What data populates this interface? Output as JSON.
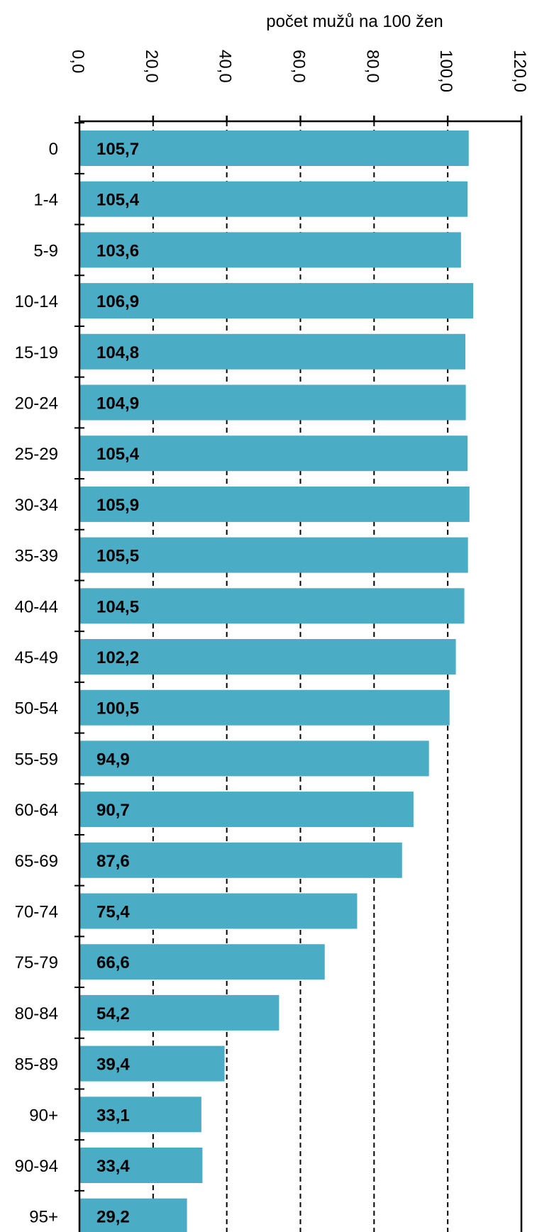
{
  "chart_data": {
    "type": "bar",
    "orientation": "horizontal",
    "title": "počet mužů na 100 žen",
    "xlabel": "",
    "ylabel": "",
    "xlim": [
      0,
      120
    ],
    "x_ticks": [
      0,
      20,
      40,
      60,
      80,
      100,
      120
    ],
    "x_tick_labels": [
      "0,0",
      "20,0",
      "40,0",
      "60,0",
      "80,0",
      "100,0",
      "120,0"
    ],
    "grid": "vertical dashed",
    "legend": "none",
    "bar_color": "#4bacc6",
    "categories": [
      "0",
      "1-4",
      "5-9",
      "10-14",
      "15-19",
      "20-24",
      "25-29",
      "30-34",
      "35-39",
      "40-44",
      "45-49",
      "50-54",
      "55-59",
      "60-64",
      "65-69",
      "70-74",
      "75-79",
      "80-84",
      "85-89",
      "90+",
      "90-94",
      "95+"
    ],
    "values": [
      105.7,
      105.4,
      103.6,
      106.9,
      104.8,
      104.9,
      105.4,
      105.9,
      105.5,
      104.5,
      102.2,
      100.5,
      94.9,
      90.7,
      87.6,
      75.4,
      66.6,
      54.2,
      39.4,
      33.1,
      33.4,
      29.2
    ],
    "data_labels": [
      "105,7",
      "105,4",
      "103,6",
      "106,9",
      "104,8",
      "104,9",
      "105,4",
      "105,9",
      "105,5",
      "104,5",
      "102,2",
      "100,5",
      "94,9",
      "90,7",
      "87,6",
      "75,4",
      "66,6",
      "54,2",
      "39,4",
      "33,1",
      "33,4",
      "29,2"
    ]
  }
}
